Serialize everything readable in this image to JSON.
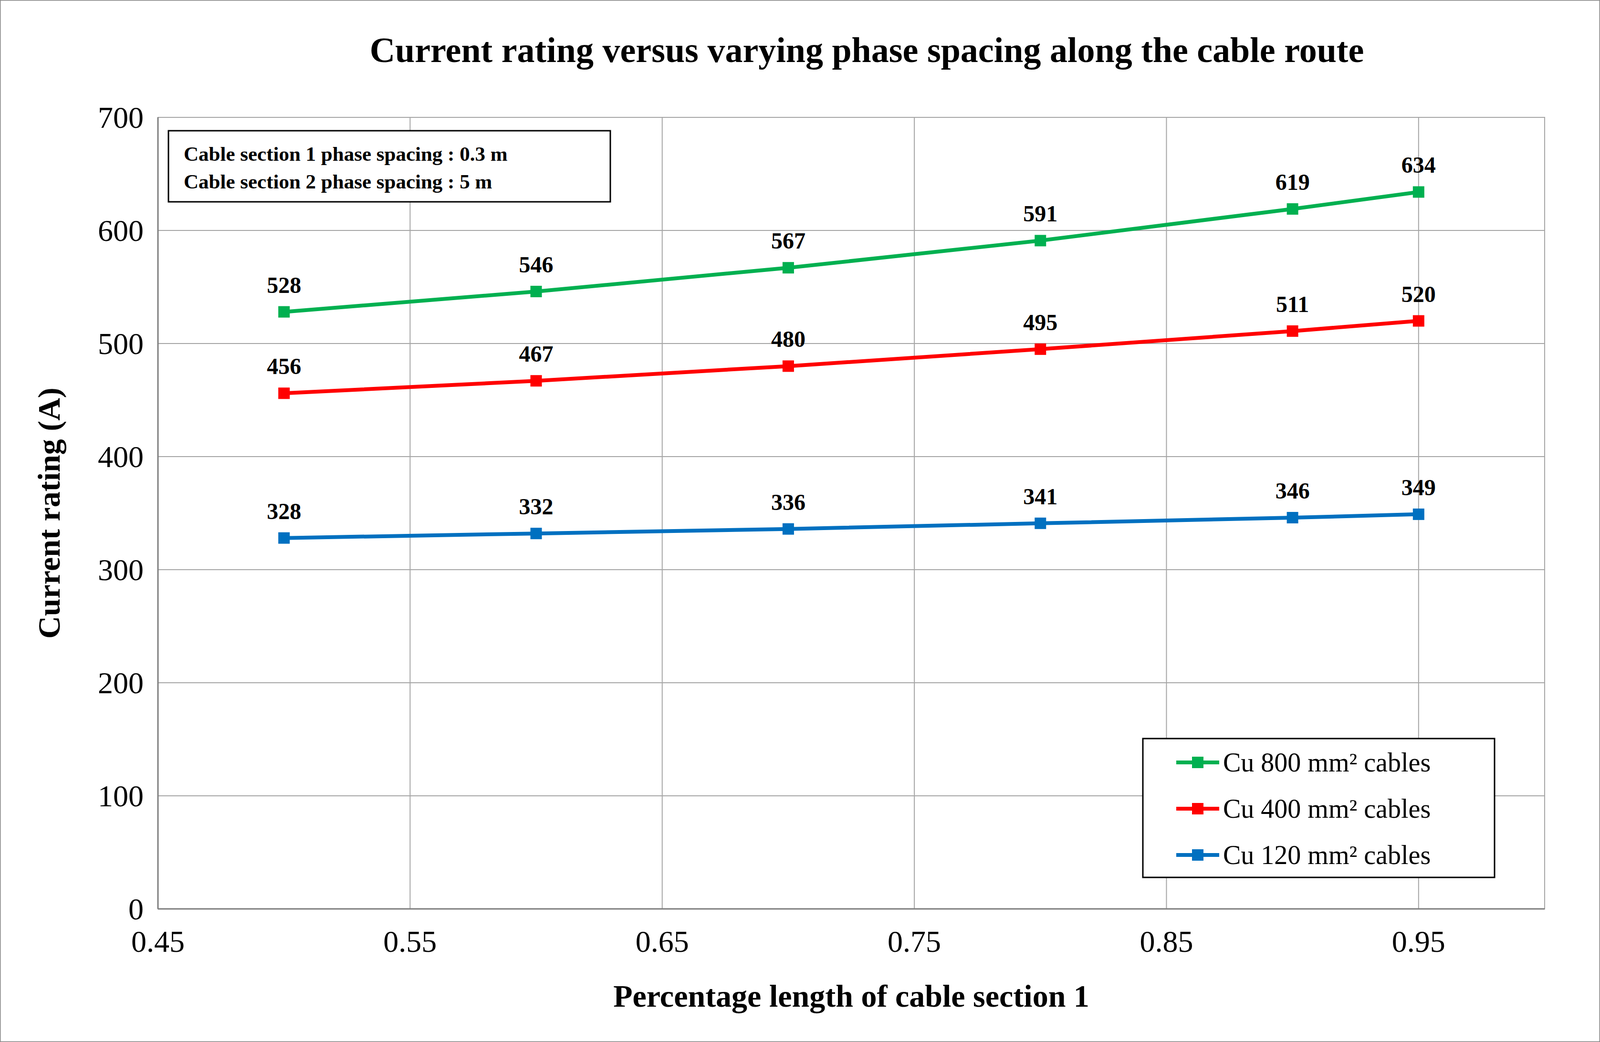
{
  "chart_data": {
    "type": "line",
    "title": "Current rating versus varying phase spacing along the cable route",
    "x_label": "Percentage length of cable section 1",
    "y_label": "Current rating (A)",
    "annotations": [
      "Cable section 1 phase spacing : 0.3 m",
      "Cable section 2 phase spacing : 5 m"
    ],
    "x": [
      0.5,
      0.6,
      0.7,
      0.8,
      0.9,
      0.95
    ],
    "series": [
      {
        "name": "Cu 800 mm² cables",
        "color": "#00b050",
        "marker": "square",
        "values": [
          528,
          546,
          567,
          591,
          619,
          634
        ]
      },
      {
        "name": "Cu 400 mm² cables",
        "color": "#ff0000",
        "marker": "square",
        "values": [
          456,
          467,
          480,
          495,
          511,
          520
        ]
      },
      {
        "name": "Cu 120 mm² cables",
        "color": "#0070c0",
        "marker": "square",
        "values": [
          328,
          332,
          336,
          341,
          346,
          349
        ]
      }
    ],
    "xlim": [
      0.45,
      1.0
    ],
    "xticks": [
      0.45,
      0.55,
      0.65,
      0.75,
      0.85,
      0.95
    ],
    "ylim": [
      0,
      700
    ],
    "yticks": [
      0,
      100,
      200,
      300,
      400,
      500,
      600,
      700
    ],
    "grid": true,
    "legend": "lower right",
    "data_labels": true
  }
}
